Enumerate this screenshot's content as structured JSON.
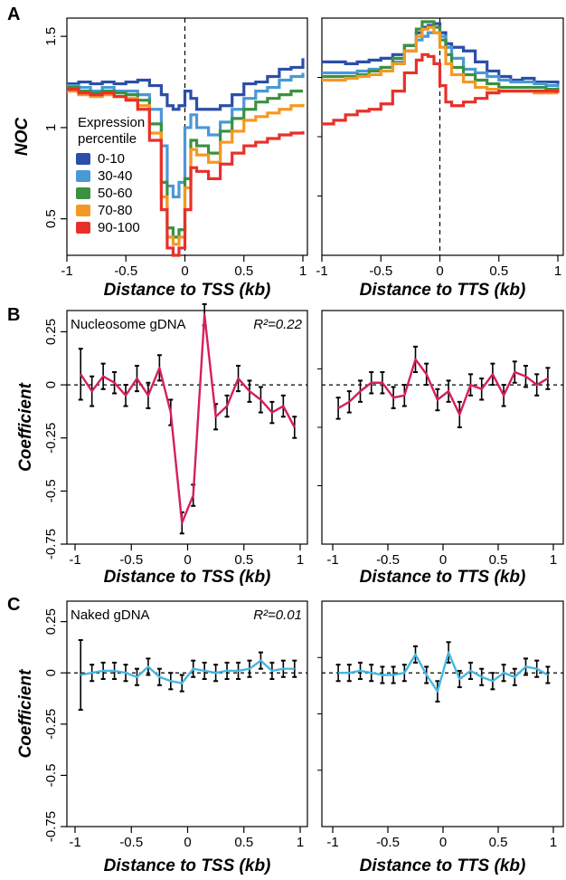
{
  "figure": {
    "panels": [
      {
        "letter": "A"
      },
      {
        "letter": "B"
      },
      {
        "letter": "C"
      }
    ]
  },
  "chart_data": [
    {
      "panel": "A",
      "type": "line",
      "subplot": "left",
      "xlabel": "Distance to TSS (kb)",
      "ylabel": "NOC",
      "xlim": [
        -1,
        1
      ],
      "ylim": [
        0.3,
        1.6
      ],
      "xticks": [
        -1,
        -0.5,
        0,
        0.5,
        1
      ],
      "xtick_labels": [
        "-1",
        "-0.5",
        "0",
        "0.5",
        "1"
      ],
      "yticks": [
        0.5,
        1,
        1.5
      ],
      "ytick_labels": [
        "0.5",
        "1",
        "1.5"
      ],
      "vline": 0,
      "legend": {
        "title": [
          "Expression",
          "percentile"
        ],
        "placement": "lower-left"
      },
      "x": [
        -1,
        -0.9,
        -0.8,
        -0.7,
        -0.6,
        -0.5,
        -0.4,
        -0.3,
        -0.2,
        -0.15,
        -0.1,
        -0.05,
        0,
        0.05,
        0.1,
        0.2,
        0.3,
        0.4,
        0.5,
        0.6,
        0.7,
        0.8,
        0.9,
        1
      ],
      "series": [
        {
          "name": "0-10",
          "color": "#2b4fa8",
          "values": [
            1.24,
            1.25,
            1.24,
            1.25,
            1.24,
            1.25,
            1.26,
            1.23,
            1.18,
            1.12,
            1.1,
            1.12,
            1.2,
            1.16,
            1.1,
            1.1,
            1.12,
            1.18,
            1.24,
            1.25,
            1.28,
            1.32,
            1.33,
            1.38
          ]
        },
        {
          "name": "30-40",
          "color": "#4a98d6",
          "values": [
            1.23,
            1.22,
            1.2,
            1.22,
            1.2,
            1.2,
            1.18,
            1.1,
            0.9,
            0.68,
            0.62,
            0.7,
            1.0,
            1.07,
            1.0,
            0.96,
            1.03,
            1.1,
            1.16,
            1.2,
            1.22,
            1.26,
            1.28,
            1.3
          ]
        },
        {
          "name": "50-60",
          "color": "#3b9140",
          "values": [
            1.22,
            1.2,
            1.19,
            1.2,
            1.19,
            1.18,
            1.15,
            1.02,
            0.7,
            0.45,
            0.4,
            0.44,
            0.72,
            0.93,
            0.9,
            0.86,
            0.98,
            1.05,
            1.1,
            1.14,
            1.16,
            1.18,
            1.2,
            1.2
          ]
        },
        {
          "name": "70-80",
          "color": "#f59823",
          "values": [
            1.2,
            1.18,
            1.17,
            1.18,
            1.17,
            1.16,
            1.12,
            0.97,
            0.62,
            0.4,
            0.36,
            0.4,
            0.67,
            0.88,
            0.85,
            0.81,
            0.92,
            0.98,
            1.04,
            1.06,
            1.08,
            1.1,
            1.12,
            1.13
          ]
        },
        {
          "name": "90-100",
          "color": "#e8302a",
          "values": [
            1.21,
            1.19,
            1.18,
            1.19,
            1.17,
            1.15,
            1.1,
            0.93,
            0.55,
            0.34,
            0.3,
            0.34,
            0.55,
            0.78,
            0.76,
            0.72,
            0.8,
            0.86,
            0.9,
            0.92,
            0.94,
            0.96,
            0.97,
            0.98
          ]
        }
      ]
    },
    {
      "panel": "A",
      "type": "line",
      "subplot": "right",
      "xlabel": "Distance to TTS (kb)",
      "xlim": [
        -1,
        1
      ],
      "ylim": [
        0.3,
        1.6
      ],
      "xticks": [
        -1,
        -0.5,
        0,
        0.5,
        1
      ],
      "xtick_labels": [
        "-1",
        "-0.5",
        "0",
        "0.5",
        "1"
      ],
      "vline": 0,
      "x": [
        -1,
        -0.9,
        -0.8,
        -0.7,
        -0.6,
        -0.5,
        -0.4,
        -0.3,
        -0.2,
        -0.15,
        -0.1,
        -0.05,
        0,
        0.05,
        0.1,
        0.2,
        0.3,
        0.4,
        0.5,
        0.6,
        0.7,
        0.8,
        0.9,
        1
      ],
      "series": [
        {
          "name": "0-10",
          "color": "#2b4fa8",
          "values": [
            1.36,
            1.36,
            1.35,
            1.36,
            1.37,
            1.38,
            1.4,
            1.45,
            1.52,
            1.55,
            1.56,
            1.57,
            1.52,
            1.46,
            1.44,
            1.42,
            1.36,
            1.31,
            1.28,
            1.26,
            1.27,
            1.25,
            1.25,
            1.24
          ]
        },
        {
          "name": "30-40",
          "color": "#4a98d6",
          "values": [
            1.3,
            1.3,
            1.3,
            1.31,
            1.32,
            1.33,
            1.36,
            1.42,
            1.48,
            1.5,
            1.52,
            1.52,
            1.5,
            1.44,
            1.38,
            1.32,
            1.3,
            1.28,
            1.26,
            1.25,
            1.25,
            1.24,
            1.23,
            1.24
          ]
        },
        {
          "name": "50-60",
          "color": "#3b9140",
          "values": [
            1.28,
            1.28,
            1.28,
            1.29,
            1.31,
            1.33,
            1.38,
            1.45,
            1.54,
            1.58,
            1.58,
            1.55,
            1.48,
            1.4,
            1.33,
            1.29,
            1.26,
            1.24,
            1.22,
            1.22,
            1.22,
            1.22,
            1.21,
            1.22
          ]
        },
        {
          "name": "70-80",
          "color": "#f59823",
          "values": [
            1.26,
            1.26,
            1.27,
            1.28,
            1.29,
            1.31,
            1.35,
            1.42,
            1.5,
            1.54,
            1.55,
            1.52,
            1.44,
            1.35,
            1.29,
            1.25,
            1.22,
            1.21,
            1.2,
            1.2,
            1.2,
            1.19,
            1.19,
            1.19
          ]
        },
        {
          "name": "90-100",
          "color": "#e8302a",
          "values": [
            1.02,
            1.04,
            1.07,
            1.09,
            1.1,
            1.13,
            1.2,
            1.3,
            1.37,
            1.4,
            1.39,
            1.35,
            1.23,
            1.14,
            1.12,
            1.14,
            1.16,
            1.19,
            1.2,
            1.2,
            1.2,
            1.2,
            1.2,
            1.19
          ]
        }
      ]
    },
    {
      "panel": "B",
      "type": "line",
      "subplot": "left",
      "annotation_left": "Nucleosome gDNA",
      "annotation_right": "R²=0.22",
      "xlabel": "Distance to TSS (kb)",
      "ylabel": "Coefficient",
      "xlim": [
        -1,
        1
      ],
      "ylim": [
        -0.75,
        0.35
      ],
      "xticks": [
        -1,
        -0.5,
        0,
        0.5,
        1
      ],
      "xtick_labels": [
        "-1",
        "-0.5",
        "0",
        "0.5",
        "1"
      ],
      "yticks": [
        -0.75,
        -0.5,
        -0.25,
        0,
        0.25
      ],
      "ytick_labels": [
        "-0.75",
        "-0.5",
        "-0.25",
        "0",
        "0.25"
      ],
      "hline": 0,
      "series": [
        {
          "color": "#d61f5c",
          "x": [
            -0.95,
            -0.85,
            -0.75,
            -0.65,
            -0.55,
            -0.45,
            -0.35,
            -0.25,
            -0.15,
            -0.05,
            0.05,
            0.15,
            0.25,
            0.35,
            0.45,
            0.55,
            0.65,
            0.75,
            0.85,
            0.95
          ],
          "values": [
            0.05,
            -0.03,
            0.04,
            0.01,
            -0.05,
            0.03,
            -0.05,
            0.08,
            -0.13,
            -0.65,
            -0.52,
            0.33,
            -0.15,
            -0.1,
            0.03,
            -0.03,
            -0.07,
            -0.13,
            -0.1,
            -0.2
          ],
          "err": [
            0.12,
            0.07,
            0.06,
            0.05,
            0.05,
            0.06,
            0.06,
            0.06,
            0.06,
            0.05,
            0.05,
            0.05,
            0.06,
            0.05,
            0.06,
            0.05,
            0.06,
            0.05,
            0.05,
            0.05
          ]
        }
      ]
    },
    {
      "panel": "B",
      "type": "line",
      "subplot": "right",
      "xlabel": "Distance to TTS (kb)",
      "xlim": [
        -1,
        1
      ],
      "ylim": [
        -0.75,
        0.35
      ],
      "xticks": [
        -1,
        -0.5,
        0,
        0.5,
        1
      ],
      "xtick_labels": [
        "-1",
        "-0.5",
        "0",
        "0.5",
        "1"
      ],
      "hline": 0,
      "series": [
        {
          "color": "#d61f5c",
          "x": [
            -0.95,
            -0.85,
            -0.75,
            -0.65,
            -0.55,
            -0.45,
            -0.35,
            -0.25,
            -0.15,
            -0.05,
            0.05,
            0.15,
            0.25,
            0.35,
            0.45,
            0.55,
            0.65,
            0.75,
            0.85,
            0.95
          ],
          "values": [
            -0.11,
            -0.08,
            -0.03,
            0.01,
            0.01,
            -0.06,
            -0.05,
            0.12,
            0.05,
            -0.07,
            -0.03,
            -0.14,
            0.0,
            -0.02,
            0.05,
            -0.05,
            0.06,
            0.04,
            0.0,
            0.03
          ],
          "err": [
            0.05,
            0.05,
            0.05,
            0.05,
            0.05,
            0.05,
            0.05,
            0.06,
            0.05,
            0.05,
            0.05,
            0.06,
            0.05,
            0.05,
            0.05,
            0.05,
            0.05,
            0.05,
            0.05,
            0.05
          ]
        }
      ]
    },
    {
      "panel": "C",
      "type": "line",
      "subplot": "left",
      "annotation_left": "Naked gDNA",
      "annotation_right": "R²=0.01",
      "xlabel": "Distance to TSS (kb)",
      "ylabel": "Coefficient",
      "xlim": [
        -1,
        1
      ],
      "ylim": [
        -0.75,
        0.35
      ],
      "xticks": [
        -1,
        -0.5,
        0,
        0.5,
        1
      ],
      "xtick_labels": [
        "-1",
        "-0.5",
        "0",
        "0.5",
        "1"
      ],
      "yticks": [
        -0.75,
        -0.5,
        -0.25,
        0,
        0.25
      ],
      "ytick_labels": [
        "-0.75",
        "-0.5",
        "-0.25",
        "0",
        "0.25"
      ],
      "hline": 0,
      "series": [
        {
          "color": "#45b8e4",
          "x": [
            -0.95,
            -0.85,
            -0.75,
            -0.65,
            -0.55,
            -0.45,
            -0.35,
            -0.25,
            -0.15,
            -0.05,
            0.05,
            0.15,
            0.25,
            0.35,
            0.45,
            0.55,
            0.65,
            0.75,
            0.85,
            0.95
          ],
          "values": [
            -0.01,
            0.0,
            0.01,
            0.01,
            0.0,
            -0.02,
            0.03,
            -0.02,
            -0.04,
            -0.05,
            0.02,
            0.01,
            0.0,
            0.01,
            0.01,
            0.02,
            0.06,
            0.01,
            0.02,
            0.02
          ],
          "err": [
            0.17,
            0.04,
            0.04,
            0.04,
            0.04,
            0.04,
            0.04,
            0.04,
            0.04,
            0.04,
            0.04,
            0.04,
            0.04,
            0.04,
            0.04,
            0.04,
            0.04,
            0.04,
            0.04,
            0.04
          ]
        }
      ]
    },
    {
      "panel": "C",
      "type": "line",
      "subplot": "right",
      "xlabel": "Distance to TTS (kb)",
      "xlim": [
        -1,
        1
      ],
      "ylim": [
        -0.75,
        0.35
      ],
      "xticks": [
        -1,
        -0.5,
        0,
        0.5,
        1
      ],
      "xtick_labels": [
        "-1",
        "-0.5",
        "0",
        "0.5",
        "1"
      ],
      "hline": 0,
      "series": [
        {
          "color": "#45b8e4",
          "x": [
            -0.95,
            -0.85,
            -0.75,
            -0.65,
            -0.55,
            -0.45,
            -0.35,
            -0.25,
            -0.15,
            -0.05,
            0.05,
            0.15,
            0.25,
            0.35,
            0.45,
            0.55,
            0.65,
            0.75,
            0.85,
            0.95
          ],
          "values": [
            0.0,
            0.0,
            0.01,
            0.0,
            -0.01,
            -0.01,
            0.0,
            0.09,
            -0.01,
            -0.09,
            0.1,
            -0.03,
            0.01,
            -0.02,
            -0.04,
            0.0,
            -0.02,
            0.03,
            0.02,
            -0.01
          ],
          "err": [
            0.04,
            0.04,
            0.04,
            0.04,
            0.04,
            0.04,
            0.04,
            0.04,
            0.04,
            0.05,
            0.05,
            0.04,
            0.04,
            0.04,
            0.04,
            0.04,
            0.04,
            0.04,
            0.04,
            0.04
          ]
        }
      ]
    }
  ]
}
